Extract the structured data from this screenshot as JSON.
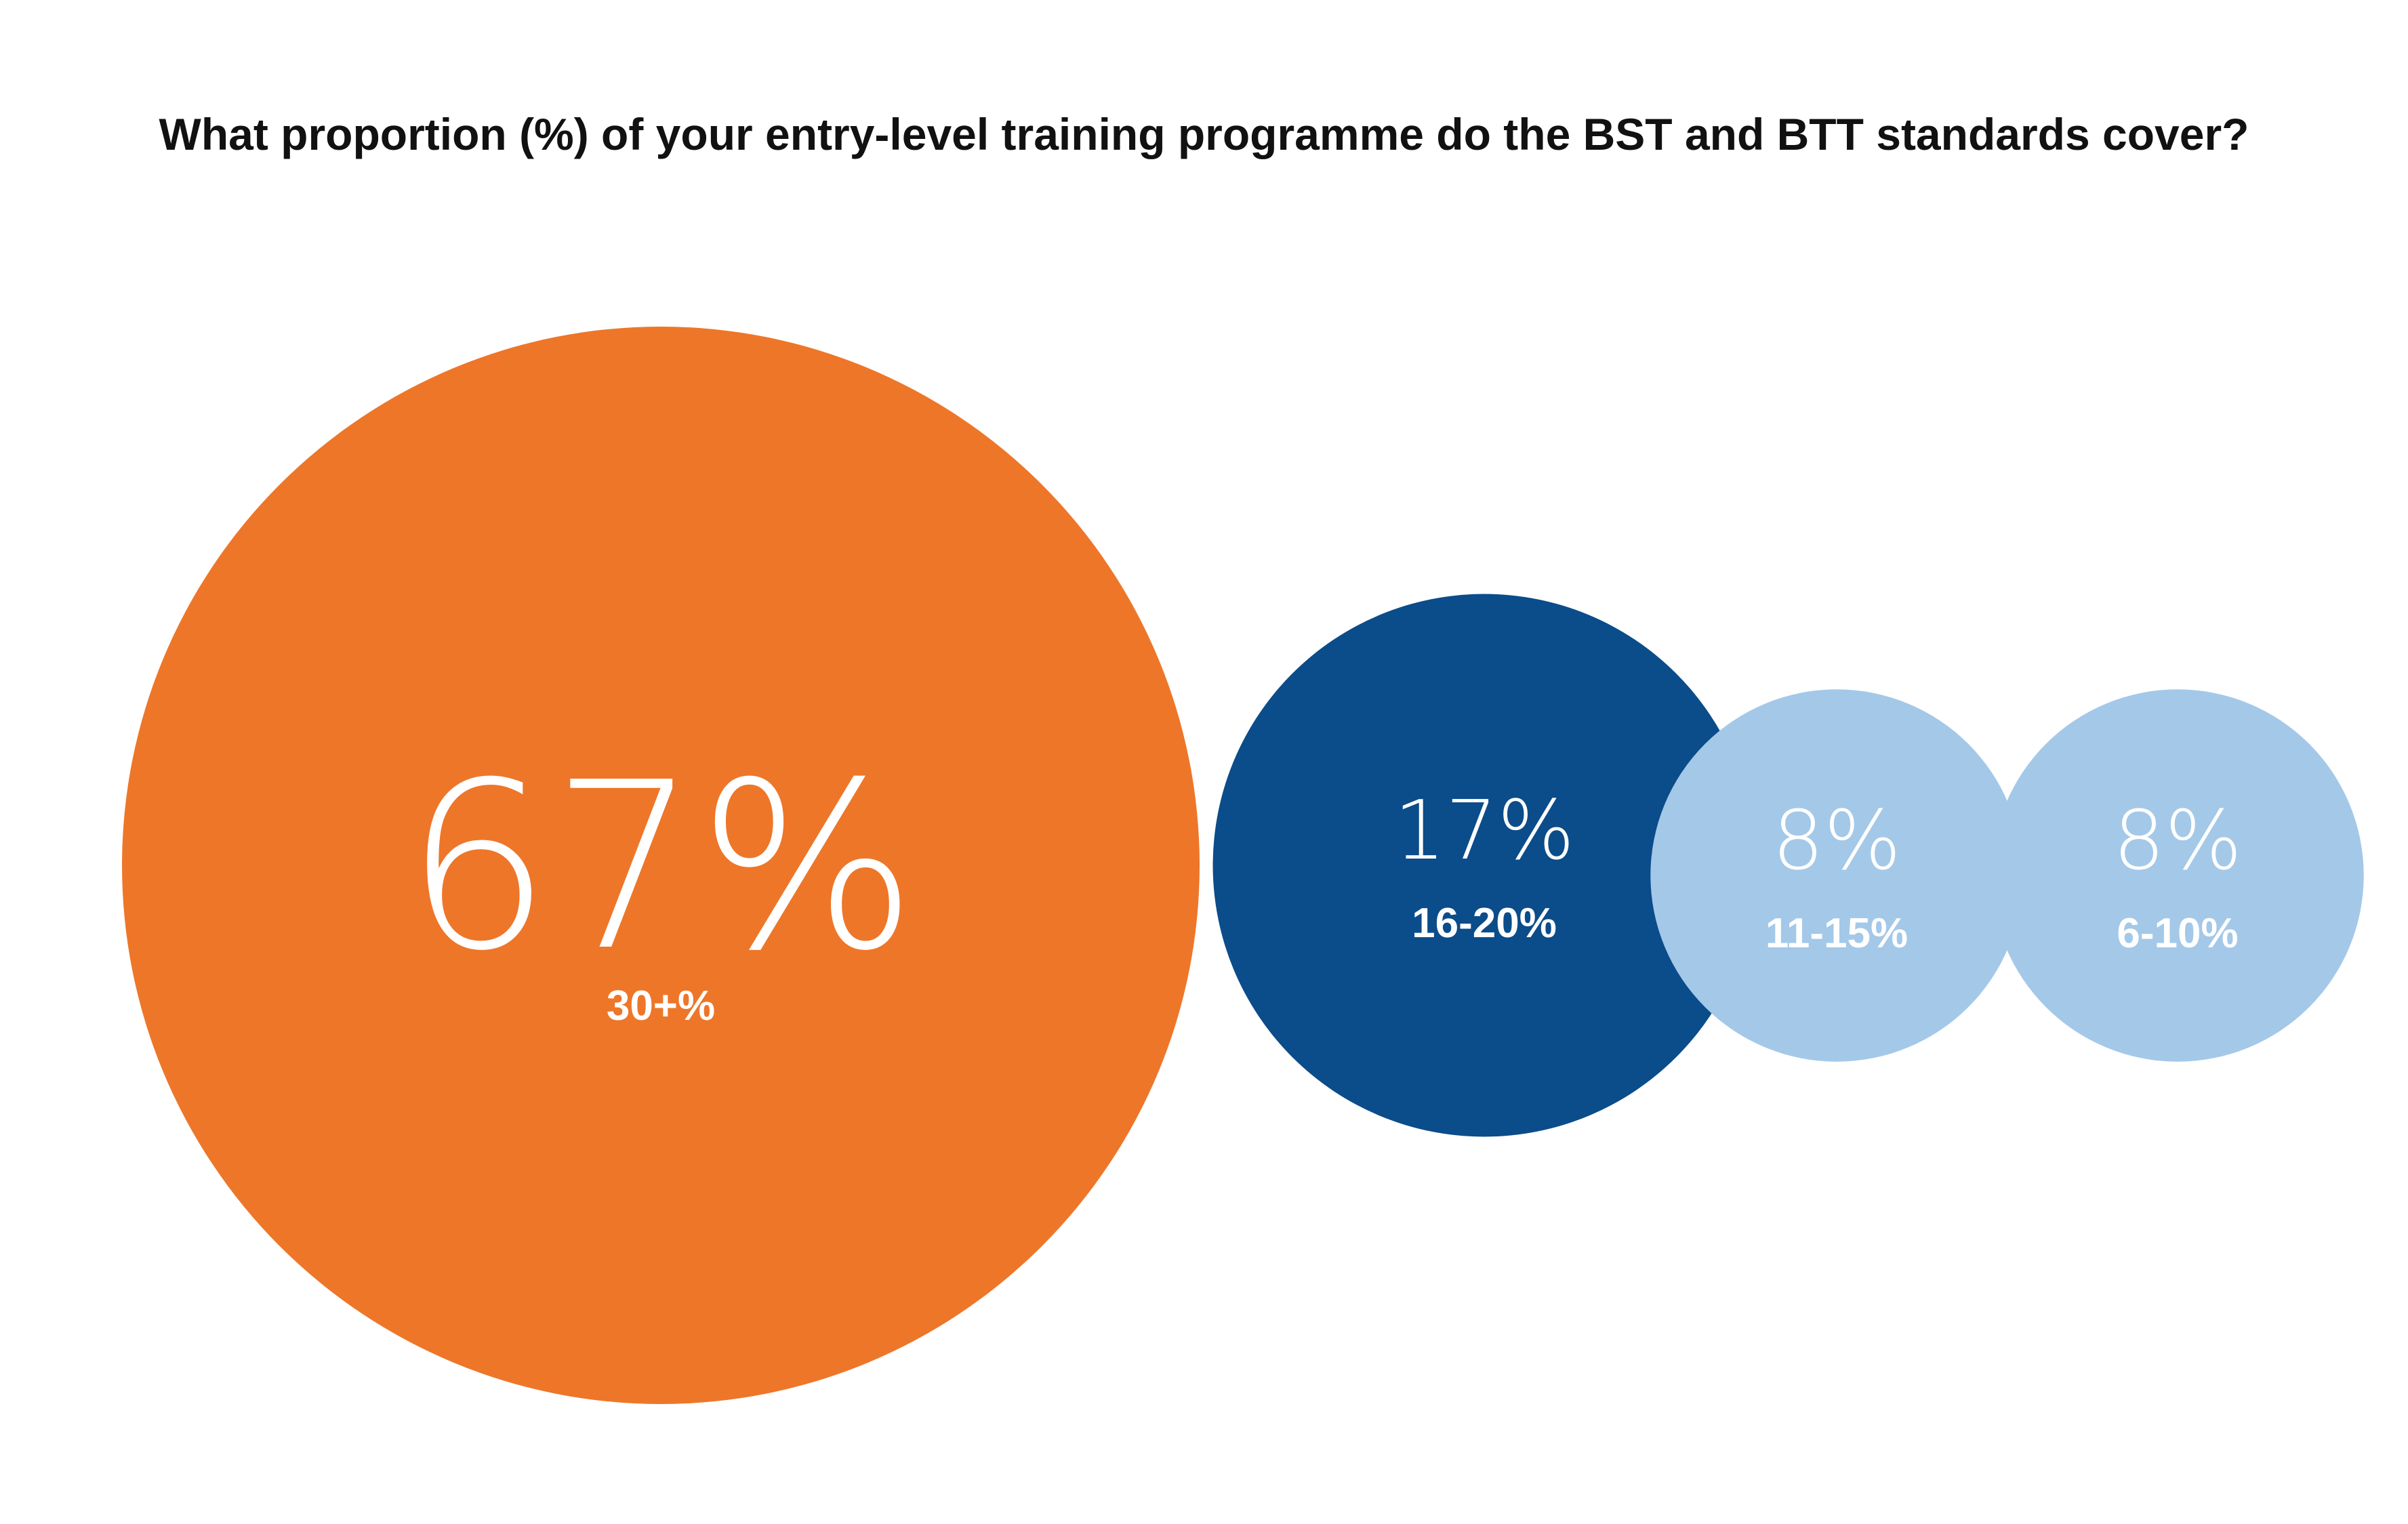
{
  "chart_data": {
    "type": "bubble",
    "title": "What proportion (%) of your entry-level training programme do the BST and BTT standards cover?",
    "categories": [
      "30+%",
      "16-20%",
      "11-15%",
      "6-10%"
    ],
    "values": [
      67,
      17,
      8,
      8
    ],
    "value_labels": [
      "67%",
      "17%",
      "8%",
      "8%"
    ],
    "colors": {
      "30+%": "#EE7629",
      "16-20%": "#0B4C8A",
      "11-15%": "#A4C8E8",
      "6-10%": "#A4C8E8"
    },
    "label_colors": {
      "value_text": "#FFFFFF",
      "category_text_inside": "#FFFFFF",
      "category_text_outside": "#3A7FC4"
    }
  }
}
